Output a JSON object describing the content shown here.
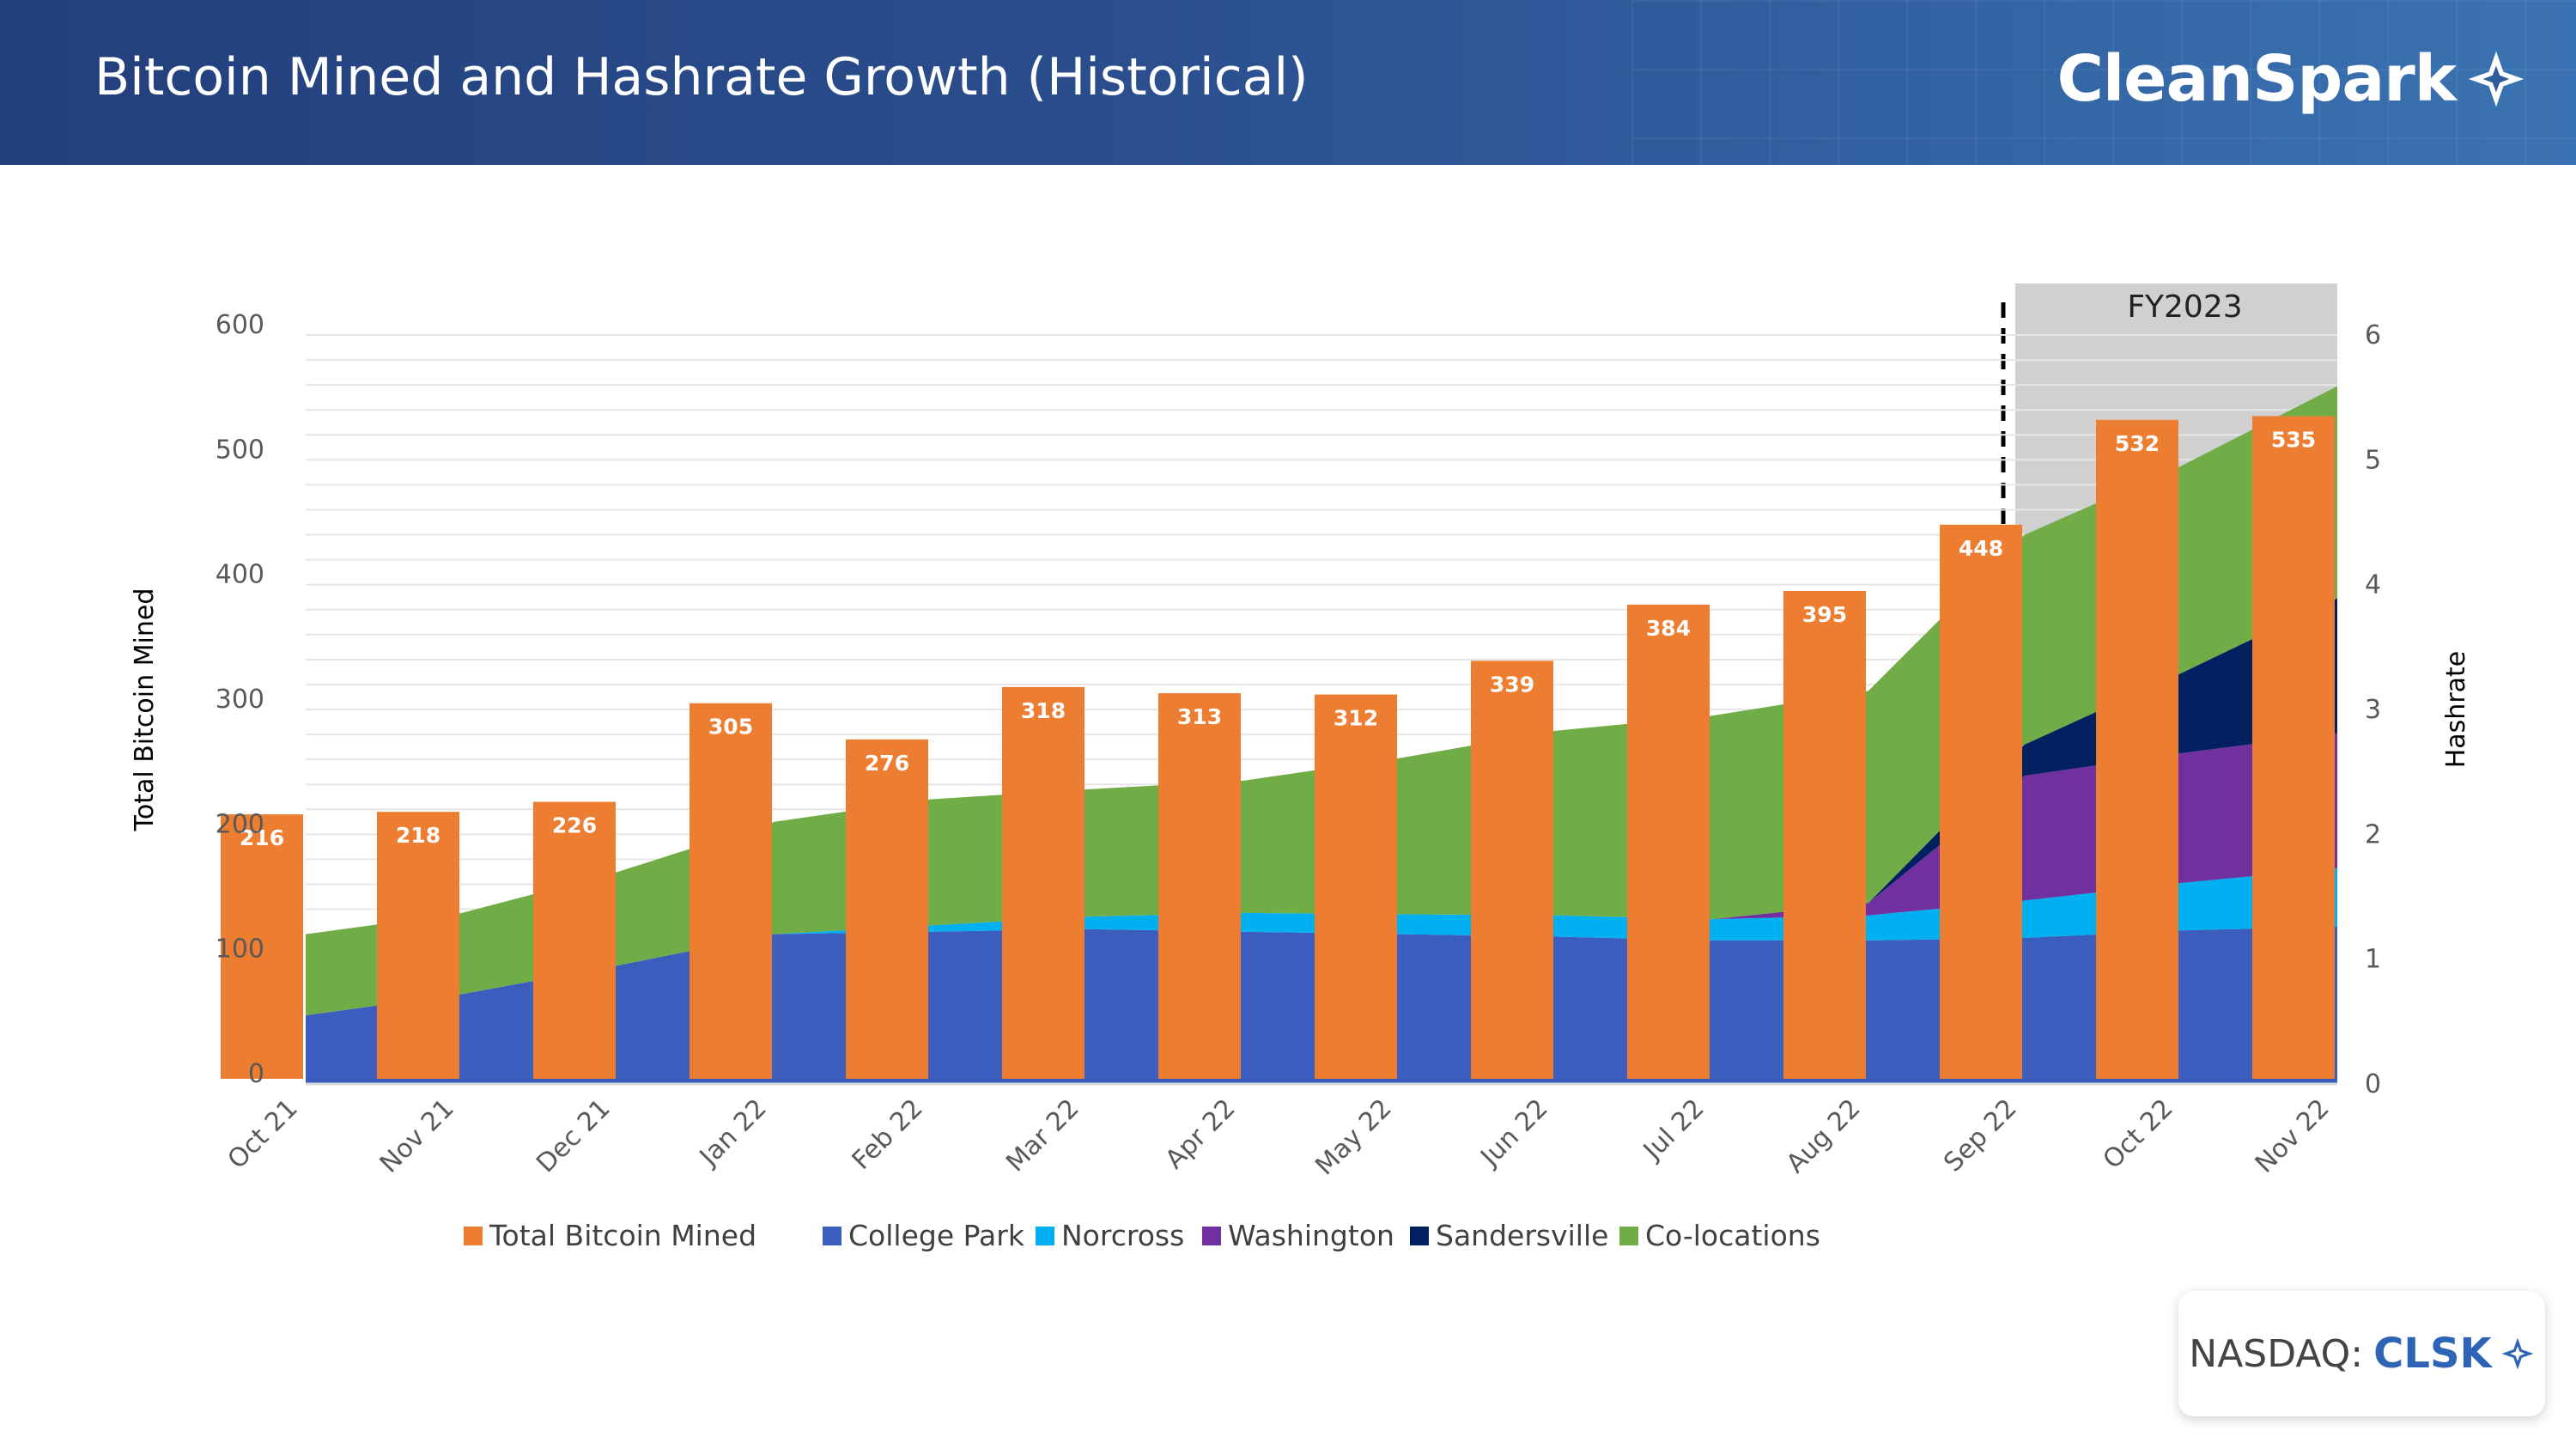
{
  "header": {
    "title": "Bitcoin Mined and Hashrate Growth (Historical)",
    "logo_text": "CleanSpark"
  },
  "footer": {
    "exchange_label": "NASDAQ:",
    "ticker": "CLSK"
  },
  "colors": {
    "total_bitcoin_mined": "#ED7D31",
    "college_park": "#3B5DBD",
    "norcross": "#00B0F0",
    "washington": "#7030A0",
    "sandersville": "#002060",
    "co_locations": "#70AD47",
    "fy_band": "#D0D0D0"
  },
  "chart_data": {
    "type": "bar",
    "title": "",
    "categories": [
      "Oct 21",
      "Nov 21",
      "Dec 21",
      "Jan 22",
      "Feb 22",
      "Mar 22",
      "Apr 22",
      "May 22",
      "Jun 22",
      "Jul 22",
      "Aug 22",
      "Sep 22",
      "Oct 22",
      "Nov 22"
    ],
    "ylabel": "Total Bitcoin Mined",
    "y2label": "Hashrate",
    "ylim": [
      0,
      600
    ],
    "yticks": [
      "0",
      "100",
      "200",
      "300",
      "400",
      "500",
      "600"
    ],
    "y2lim": [
      0,
      6
    ],
    "y2ticks": [
      "0",
      "1",
      "2",
      "3",
      "4",
      "5",
      "6"
    ],
    "bars": {
      "name": "Total Bitcoin Mined",
      "values": [
        216,
        218,
        226,
        305,
        276,
        318,
        313,
        312,
        339,
        384,
        395,
        448,
        532,
        535
      ]
    },
    "area_x": [
      "Oct 21",
      "Nov 21",
      "Dec 21",
      "Jan 22",
      "Feb 22",
      "Mar 22",
      "Apr 22",
      "May 22",
      "Jun 22",
      "Jul 22",
      "Aug 22",
      "Sep 22",
      "Oct 22",
      "Nov 22"
    ],
    "area_series": [
      {
        "name": "College Park",
        "values": [
          0.55,
          0.72,
          0.95,
          1.2,
          1.22,
          1.24,
          1.22,
          1.2,
          1.18,
          1.15,
          1.15,
          1.17,
          1.23,
          1.26
        ]
      },
      {
        "name": "Norcross",
        "values": [
          0,
          0,
          0,
          0,
          0.05,
          0.1,
          0.15,
          0.16,
          0.17,
          0.17,
          0.2,
          0.3,
          0.38,
          0.47
        ]
      },
      {
        "name": "Washington",
        "values": [
          0,
          0,
          0,
          0,
          0,
          0,
          0,
          0,
          0,
          0,
          0.1,
          1.0,
          1.04,
          1.08
        ]
      },
      {
        "name": "Sandersville",
        "values": [
          0,
          0,
          0,
          0,
          0,
          0,
          0,
          0,
          0,
          0,
          0,
          0.25,
          0.64,
          1.08
        ]
      },
      {
        "name": "Co-locations",
        "values": [
          0.65,
          0.65,
          0.75,
          0.9,
          1.01,
          1.02,
          1.06,
          1.25,
          1.48,
          1.63,
          1.7,
          1.68,
          1.66,
          1.7
        ]
      }
    ],
    "annotations": [
      {
        "type": "band",
        "label": "FY2023",
        "from": "Sep 22",
        "to": "Nov 22"
      }
    ],
    "legend": {
      "placement": "bottom",
      "items": [
        "Total Bitcoin Mined",
        "College Park",
        "Norcross",
        "Washington",
        "Sandersville",
        "Co-locations"
      ]
    },
    "grid": true
  }
}
